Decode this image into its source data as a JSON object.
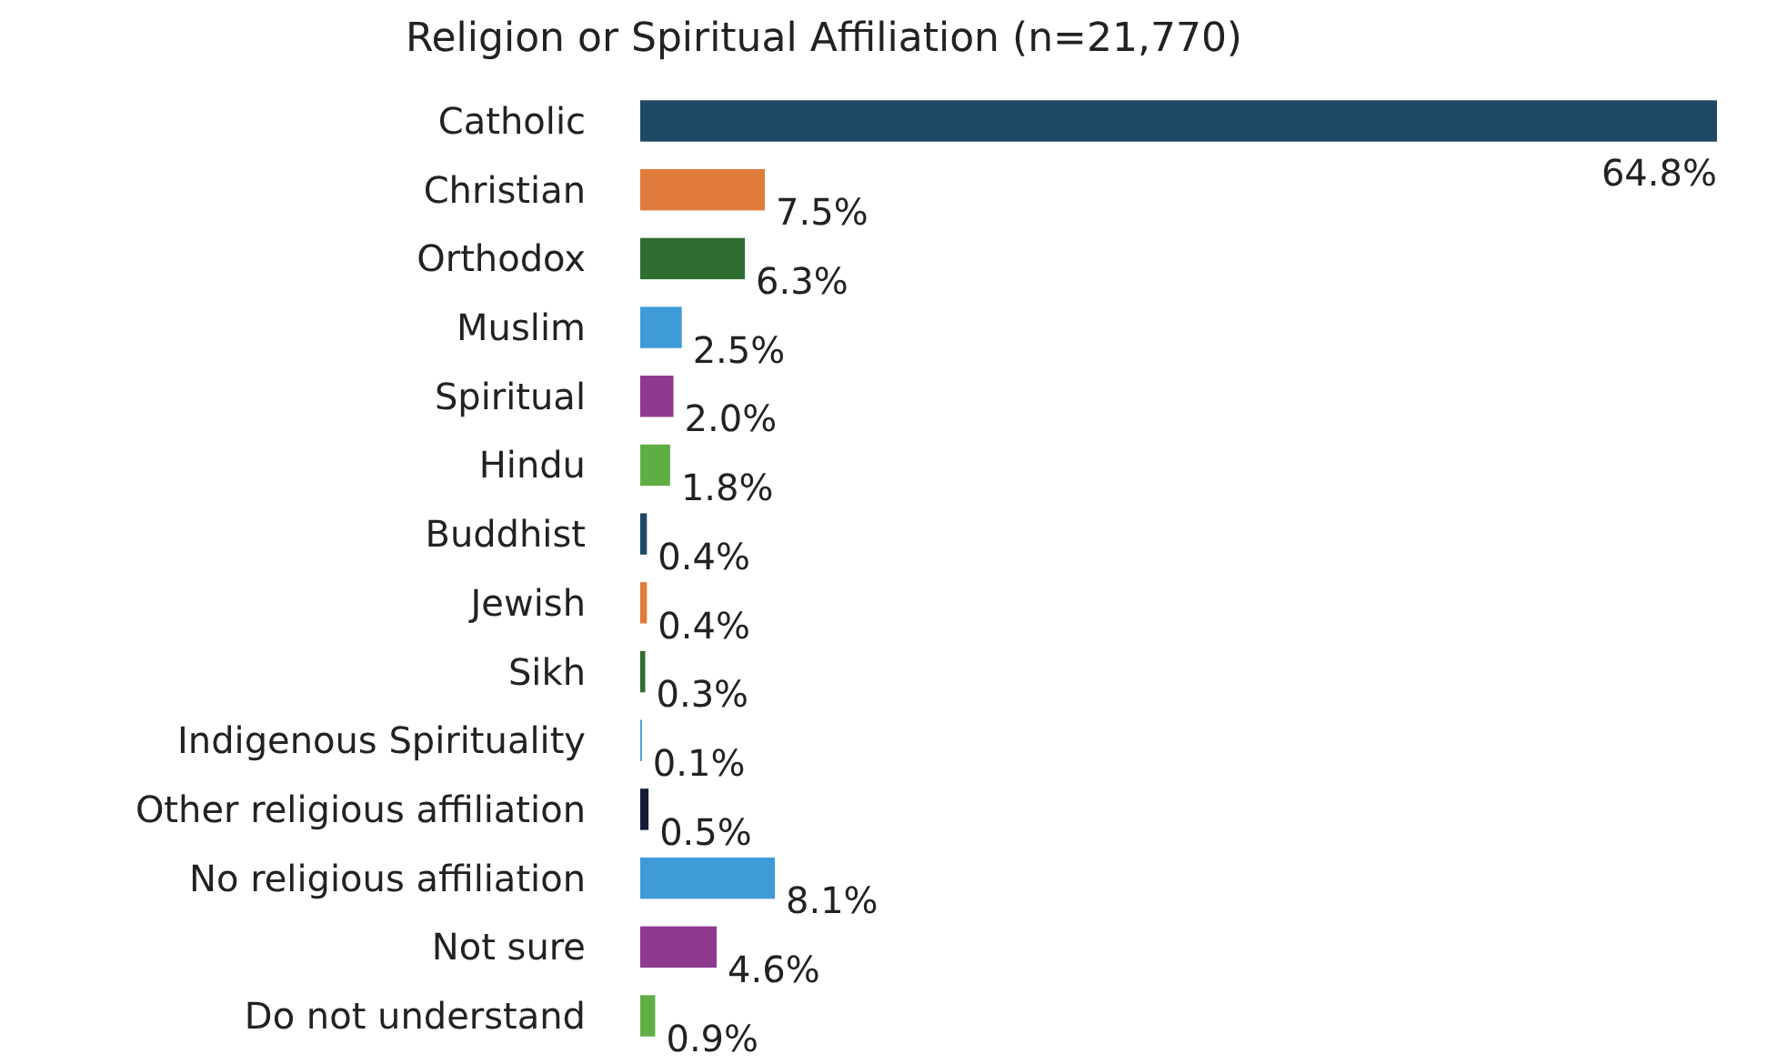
{
  "chart_data": {
    "type": "bar",
    "orientation": "horizontal",
    "title": "Religion or Spiritual Affiliation (n=21,770)",
    "categories": [
      "Catholic",
      "Christian",
      "Orthodox",
      "Muslim",
      "Spiritual",
      "Hindu",
      "Buddhist",
      "Jewish",
      "Sikh",
      "Indigenous Spirituality",
      "Other religious affiliation",
      "No religious affiliation",
      "Not sure",
      "Do not understand"
    ],
    "values": [
      64.8,
      7.5,
      6.3,
      2.5,
      2.0,
      1.8,
      0.4,
      0.4,
      0.3,
      0.1,
      0.5,
      8.1,
      4.6,
      0.9
    ],
    "value_labels": [
      "64.8%",
      "7.5%",
      "6.3%",
      "2.5%",
      "2.0%",
      "1.8%",
      "0.4%",
      "0.4%",
      "0.3%",
      "0.1%",
      "0.5%",
      "8.1%",
      "4.6%",
      "0.9%"
    ],
    "colors": [
      "#1f4866",
      "#e07b3c",
      "#2e6e30",
      "#3f9ad8",
      "#8e3a8f",
      "#5fae45",
      "#1f4866",
      "#e07b3c",
      "#2e6e30",
      "#3f9ad8",
      "#141c38",
      "#3f9ad8",
      "#8e3a8f",
      "#5fae45"
    ],
    "tick_labels": "y"
  }
}
